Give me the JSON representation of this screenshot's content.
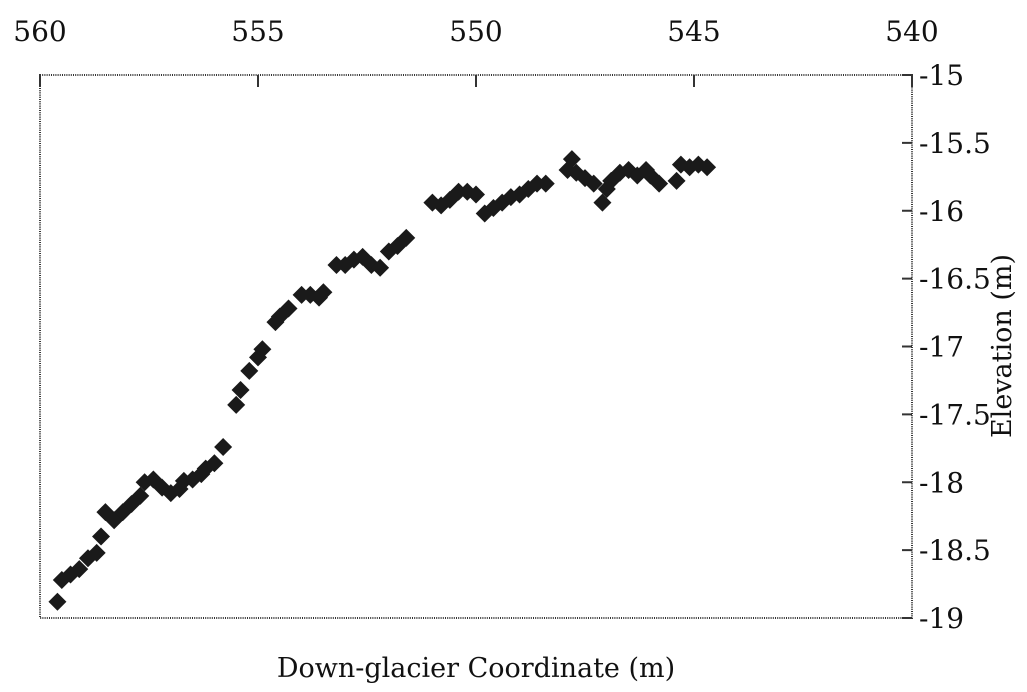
{
  "chart_data": {
    "type": "scatter",
    "title": "",
    "xlabel": "Down-glacier Coordinate (m)",
    "ylabel": "Elevation (m)",
    "x_axis_position": "top",
    "y_axis_position": "right",
    "x_reversed": true,
    "xlim": [
      540,
      560
    ],
    "ylim": [
      -19,
      -15
    ],
    "x_ticks": [
      560,
      555,
      550,
      545,
      540
    ],
    "y_ticks": [
      -15,
      -15.5,
      -16,
      -16.5,
      -17,
      -17.5,
      -18,
      -18.5,
      -19
    ],
    "x_tick_labels": [
      "560",
      "555",
      "550",
      "545",
      "540"
    ],
    "y_tick_labels": [
      "-15",
      "-15.5",
      "-16",
      "-16.5",
      "-17",
      "-17.5",
      "-18",
      "-18.5",
      "-19"
    ],
    "grid": false,
    "marker": "diamond",
    "marker_color": "#1a1a1a",
    "series": [
      {
        "points": [
          [
            559.6,
            -18.88
          ],
          [
            559.5,
            -18.72
          ],
          [
            559.3,
            -18.68
          ],
          [
            559.1,
            -18.64
          ],
          [
            558.9,
            -18.56
          ],
          [
            558.7,
            -18.52
          ],
          [
            558.6,
            -18.4
          ],
          [
            558.5,
            -18.22
          ],
          [
            558.3,
            -18.28
          ],
          [
            558.1,
            -18.22
          ],
          [
            557.9,
            -18.16
          ],
          [
            557.7,
            -18.1
          ],
          [
            557.6,
            -18.0
          ],
          [
            557.4,
            -17.98
          ],
          [
            557.2,
            -18.04
          ],
          [
            557.0,
            -18.08
          ],
          [
            556.8,
            -18.05
          ],
          [
            556.7,
            -17.99
          ],
          [
            556.5,
            -17.98
          ],
          [
            556.3,
            -17.94
          ],
          [
            556.2,
            -17.9
          ],
          [
            556.0,
            -17.86
          ],
          [
            555.8,
            -17.74
          ],
          [
            555.5,
            -17.43
          ],
          [
            555.4,
            -17.32
          ],
          [
            555.2,
            -17.18
          ],
          [
            555.0,
            -17.08
          ],
          [
            554.9,
            -17.02
          ],
          [
            554.6,
            -16.82
          ],
          [
            554.5,
            -16.78
          ],
          [
            554.3,
            -16.72
          ],
          [
            554.0,
            -16.62
          ],
          [
            553.8,
            -16.62
          ],
          [
            553.6,
            -16.64
          ],
          [
            553.5,
            -16.6
          ],
          [
            553.2,
            -16.4
          ],
          [
            553.0,
            -16.4
          ],
          [
            552.8,
            -16.36
          ],
          [
            552.6,
            -16.34
          ],
          [
            552.4,
            -16.4
          ],
          [
            552.2,
            -16.42
          ],
          [
            552.0,
            -16.3
          ],
          [
            551.8,
            -16.26
          ],
          [
            551.6,
            -16.2
          ],
          [
            551.0,
            -15.94
          ],
          [
            550.8,
            -15.96
          ],
          [
            550.6,
            -15.92
          ],
          [
            550.4,
            -15.86
          ],
          [
            550.2,
            -15.86
          ],
          [
            550.0,
            -15.88
          ],
          [
            549.8,
            -16.02
          ],
          [
            549.6,
            -15.98
          ],
          [
            549.4,
            -15.94
          ],
          [
            549.2,
            -15.9
          ],
          [
            549.0,
            -15.88
          ],
          [
            548.8,
            -15.84
          ],
          [
            548.6,
            -15.8
          ],
          [
            548.4,
            -15.8
          ],
          [
            547.9,
            -15.7
          ],
          [
            547.8,
            -15.62
          ],
          [
            547.7,
            -15.72
          ],
          [
            547.5,
            -15.76
          ],
          [
            547.3,
            -15.8
          ],
          [
            547.1,
            -15.94
          ],
          [
            547.0,
            -15.84
          ],
          [
            546.9,
            -15.78
          ],
          [
            546.7,
            -15.72
          ],
          [
            546.5,
            -15.7
          ],
          [
            546.3,
            -15.74
          ],
          [
            546.1,
            -15.7
          ],
          [
            546.0,
            -15.74
          ],
          [
            545.8,
            -15.8
          ],
          [
            545.4,
            -15.78
          ],
          [
            545.3,
            -15.66
          ],
          [
            545.1,
            -15.68
          ],
          [
            544.9,
            -15.66
          ],
          [
            544.7,
            -15.68
          ]
        ]
      }
    ]
  }
}
